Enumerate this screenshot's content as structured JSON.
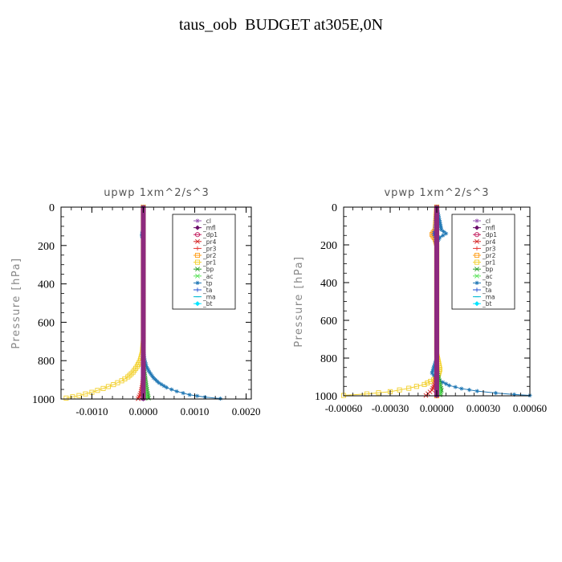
{
  "title": "taus_oob  BUDGET at305E,0N",
  "legend_entries": [
    {
      "label": "_cl",
      "color": "#9b59b6",
      "marker": "star"
    },
    {
      "label": "_mfl",
      "color": "#6a0d6a",
      "marker": "diamond"
    },
    {
      "label": "_dp1",
      "color": "#c2185b",
      "marker": "circle"
    },
    {
      "label": "_pr4",
      "color": "#d62728",
      "marker": "x"
    },
    {
      "label": "_pr3",
      "color": "#e53935",
      "marker": "plus"
    },
    {
      "label": "_pr2",
      "color": "#ff9f1a",
      "marker": "square"
    },
    {
      "label": "_pr1",
      "color": "#f2d02e",
      "marker": "square"
    },
    {
      "label": "_bp",
      "color": "#2ca02c",
      "marker": "x"
    },
    {
      "label": "_ac",
      "color": "#5be35b",
      "marker": "x"
    },
    {
      "label": "_tp",
      "color": "#1f77b4",
      "marker": "star"
    },
    {
      "label": "_ta",
      "color": "#1f4fd1",
      "marker": "plus"
    },
    {
      "label": "_ma",
      "color": "#00bcd4",
      "marker": "dash"
    },
    {
      "label": "_bt",
      "color": "#00e5ff",
      "marker": "diamond"
    }
  ],
  "chart_data": [
    {
      "type": "line",
      "title": "upwp   1xm^2/s^3",
      "ylabel": "Pressure [hPa]",
      "xlabel": "",
      "ylim": [
        1000,
        0
      ],
      "xlim": [
        -0.0016,
        0.0021
      ],
      "yticks": [
        0,
        200,
        400,
        600,
        800,
        1000
      ],
      "xticks": [
        -0.001,
        0.0,
        0.001,
        0.002
      ],
      "xtick_labels": [
        "-0.0010",
        "0.0000",
        "0.0010",
        "0.0020"
      ],
      "ytick_labels": [
        "0",
        "200",
        "400",
        "600",
        "800",
        "1000"
      ],
      "grid": false,
      "legend_position": "top-right",
      "series": [
        {
          "name": "_pr1",
          "color": "#f2d02e",
          "marker": "square",
          "x": [
            0,
            0,
            -2e-05,
            -6e-05,
            -0.00012,
            -0.0002,
            -0.0003,
            -0.00042,
            -0.00058,
            -0.00078,
            -0.001,
            -0.00125,
            -0.0015
          ],
          "y": [
            0,
            700,
            760,
            800,
            830,
            860,
            885,
            905,
            925,
            945,
            965,
            982,
            995
          ]
        },
        {
          "name": "_tp",
          "color": "#1f77b4",
          "marker": "star",
          "x": [
            -2e-05,
            -3e-05,
            0,
            0,
            2e-05,
            6e-05,
            0.00012,
            0.0002,
            0.0003,
            0.00045,
            0.00065,
            0.0009,
            0.0012,
            0.0015
          ],
          "y": [
            130,
            150,
            170,
            740,
            790,
            830,
            860,
            890,
            915,
            940,
            960,
            978,
            990,
            998
          ]
        },
        {
          "name": "_bp",
          "color": "#2ca02c",
          "marker": "x",
          "x": [
            0,
            0,
            2e-05,
            4e-05,
            6e-05,
            8e-05,
            0.0001
          ],
          "y": [
            0,
            800,
            860,
            900,
            940,
            970,
            995
          ]
        },
        {
          "name": "_ac",
          "color": "#5be35b",
          "marker": "x",
          "x": [
            0,
            0,
            1e-05,
            3e-05,
            5e-05
          ],
          "y": [
            0,
            850,
            900,
            950,
            995
          ]
        },
        {
          "name": "_pr4",
          "color": "#d62728",
          "marker": "x",
          "x": [
            0,
            0,
            -2e-05,
            -5e-05,
            -0.0001
          ],
          "y": [
            0,
            880,
            930,
            970,
            998
          ]
        },
        {
          "name": "_pr3",
          "color": "#e53935",
          "marker": "plus",
          "x": [
            0,
            0,
            -1e-05,
            -3e-05
          ],
          "y": [
            0,
            900,
            950,
            995
          ]
        },
        {
          "name": "_mfl",
          "color": "#6a0d6a",
          "marker": "diamond",
          "x": [
            0,
            0
          ],
          "y": [
            0,
            1000
          ]
        },
        {
          "name": "_cl",
          "color": "#9b59b6",
          "marker": "star",
          "x": [
            0,
            0
          ],
          "y": [
            0,
            1000
          ]
        }
      ]
    },
    {
      "type": "line",
      "title": "vpwp   1xm^2/s^3",
      "ylabel": "Pressure [hPa]",
      "xlabel": "",
      "ylim": [
        1000,
        0
      ],
      "xlim": [
        -0.0006,
        0.0006
      ],
      "yticks": [
        0,
        200,
        400,
        600,
        800,
        1000
      ],
      "xticks": [
        -0.0006,
        -0.0003,
        0.0,
        0.0003,
        0.0006
      ],
      "xtick_labels": [
        "-0.00060",
        "-0.00030",
        "0.00000",
        "0.00030",
        "0.00060"
      ],
      "ytick_labels": [
        "0",
        "200",
        "400",
        "600",
        "800",
        "1000"
      ],
      "grid": false,
      "legend_position": "top-right",
      "series": [
        {
          "name": "_pr1",
          "color": "#f2d02e",
          "marker": "square",
          "x": [
            0,
            0,
            1e-05,
            2e-05,
            1e-05,
            -2e-05,
            -8e-05,
            -0.00018,
            -0.0003,
            -0.00045,
            -0.0006
          ],
          "y": [
            0,
            780,
            820,
            860,
            890,
            915,
            940,
            960,
            978,
            990,
            998
          ]
        },
        {
          "name": "_pr2",
          "color": "#ff9f1a",
          "marker": "square",
          "x": [
            0,
            -1e-05,
            -3e-05,
            -1e-05,
            0,
            0
          ],
          "y": [
            0,
            120,
            145,
            170,
            200,
            1000
          ]
        },
        {
          "name": "_tp",
          "color": "#1f77b4",
          "marker": "star",
          "x": [
            0,
            3e-05,
            6e-05,
            2e-05,
            0,
            0,
            -2e-05,
            -3e-05,
            -1e-05,
            2e-05,
            8e-05,
            0.00016,
            0.00026,
            0.00038,
            0.0005,
            0.0006
          ],
          "y": [
            0,
            120,
            140,
            160,
            190,
            800,
            850,
            880,
            900,
            920,
            945,
            962,
            975,
            985,
            993,
            998
          ]
        },
        {
          "name": "_ta",
          "color": "#1f4fd1",
          "marker": "plus",
          "x": [
            0,
            -1e-05,
            -2e-05,
            -1e-05,
            0,
            0
          ],
          "y": [
            0,
            120,
            140,
            160,
            220,
            1000
          ]
        },
        {
          "name": "_bp",
          "color": "#2ca02c",
          "marker": "x",
          "x": [
            0,
            0,
            1e-05,
            2e-05,
            3e-05,
            2e-05
          ],
          "y": [
            0,
            860,
            900,
            940,
            970,
            995
          ]
        },
        {
          "name": "_ac",
          "color": "#5be35b",
          "marker": "x",
          "x": [
            0,
            0,
            1e-05,
            2e-05
          ],
          "y": [
            0,
            900,
            950,
            995
          ]
        },
        {
          "name": "_pr4",
          "color": "#d62728",
          "marker": "x",
          "x": [
            0,
            0,
            -1e-05,
            -3e-05,
            -7e-05
          ],
          "y": [
            0,
            880,
            930,
            970,
            998
          ]
        },
        {
          "name": "_mfl",
          "color": "#6a0d6a",
          "marker": "diamond",
          "x": [
            0,
            0
          ],
          "y": [
            0,
            1000
          ]
        },
        {
          "name": "_cl",
          "color": "#9b59b6",
          "marker": "star",
          "x": [
            0,
            0
          ],
          "y": [
            0,
            1000
          ]
        }
      ]
    }
  ]
}
